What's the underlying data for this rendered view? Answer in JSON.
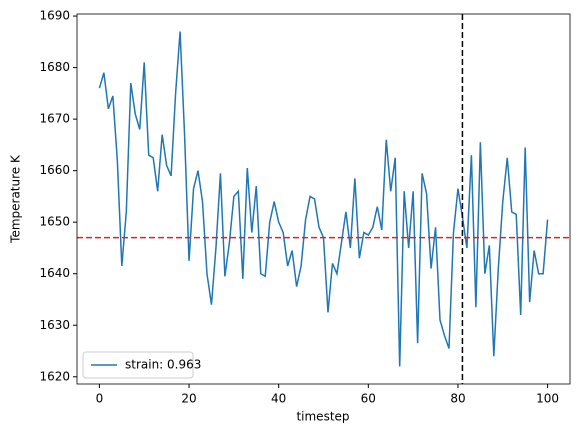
{
  "chart_data": {
    "type": "line",
    "xlabel": "timestep",
    "ylabel": "Temperature K",
    "x": [
      0,
      1,
      2,
      3,
      4,
      5,
      6,
      7,
      8,
      9,
      10,
      11,
      12,
      13,
      14,
      15,
      16,
      17,
      18,
      19,
      20,
      21,
      22,
      23,
      24,
      25,
      26,
      27,
      28,
      29,
      30,
      31,
      32,
      33,
      34,
      35,
      36,
      37,
      38,
      39,
      40,
      41,
      42,
      43,
      44,
      45,
      46,
      47,
      48,
      49,
      50,
      51,
      52,
      53,
      54,
      55,
      56,
      57,
      58,
      59,
      60,
      61,
      62,
      63,
      64,
      65,
      66,
      67,
      68,
      69,
      70,
      71,
      72,
      73,
      74,
      75,
      76,
      77,
      78,
      79,
      80,
      81,
      82,
      83,
      84,
      85,
      86,
      87,
      88,
      89,
      90,
      91,
      92,
      93,
      94,
      95,
      96,
      97,
      98,
      99,
      100
    ],
    "series": [
      {
        "name": "strain: 0.963",
        "color": "#1f77b4",
        "values": [
          1676,
          1679,
          1672,
          1674.5,
          1662,
          1641.5,
          1652,
          1677,
          1671,
          1668,
          1681,
          1663,
          1662.5,
          1656,
          1667,
          1661,
          1659,
          1675,
          1687,
          1667,
          1642.5,
          1656.5,
          1660,
          1654,
          1640,
          1634,
          1645,
          1659.5,
          1639.5,
          1646,
          1655,
          1656,
          1639,
          1660.5,
          1648,
          1657,
          1640,
          1639.5,
          1650,
          1654,
          1650,
          1648,
          1641.5,
          1644.5,
          1637.5,
          1641.5,
          1650.5,
          1655,
          1654.5,
          1649,
          1647,
          1632.5,
          1642,
          1640,
          1646,
          1652,
          1645,
          1658.5,
          1643,
          1648,
          1647.5,
          1649,
          1653,
          1648.5,
          1666,
          1656,
          1662.5,
          1622,
          1656,
          1645,
          1656,
          1626.5,
          1659.5,
          1655.5,
          1641,
          1649,
          1631,
          1628,
          1625.5,
          1648,
          1656.5,
          1651,
          1645,
          1663,
          1633.5,
          1665.5,
          1640,
          1645.5,
          1624,
          1641,
          1654,
          1662.5,
          1652,
          1651.5,
          1632,
          1664.5,
          1634.5,
          1644.5,
          1640,
          1640,
          1650.5
        ]
      }
    ],
    "reference_lines": [
      {
        "axis": "y",
        "value": 1647,
        "color": "#d62728"
      },
      {
        "axis": "x",
        "value": 81,
        "color": "#000000"
      }
    ],
    "xlim": [
      -5,
      105
    ],
    "xticks": [
      0,
      20,
      40,
      60,
      80,
      100
    ],
    "ylim": [
      1618.6,
      1690.4
    ],
    "yticks": [
      1620,
      1630,
      1640,
      1650,
      1660,
      1670,
      1680,
      1690
    ],
    "legend": "lower left"
  }
}
